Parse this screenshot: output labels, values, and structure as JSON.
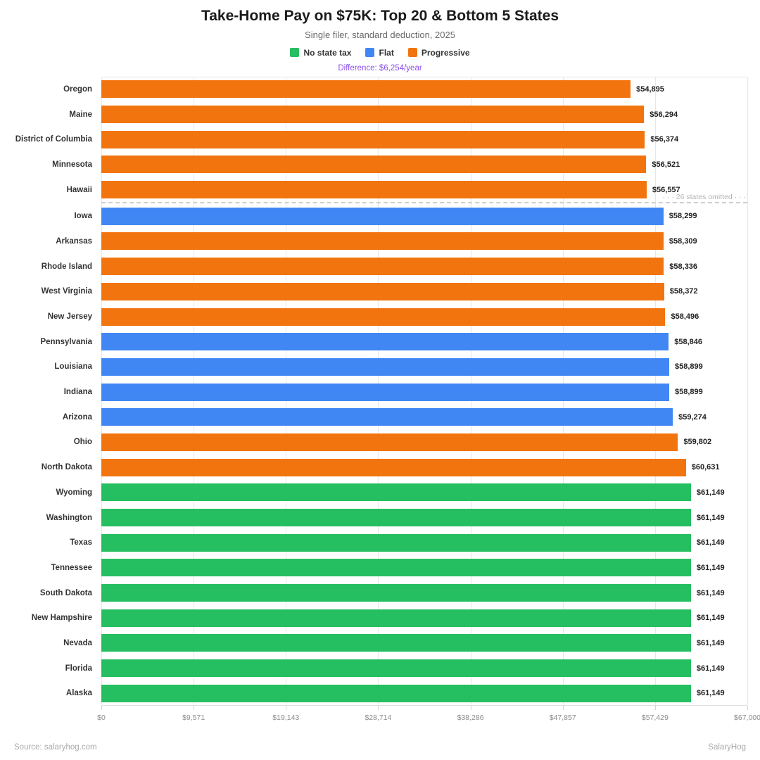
{
  "header": {
    "title": "Take-Home Pay on $75K: Top 20 & Bottom 5 States",
    "subtitle": "Single filer, standard deduction, 2025",
    "annotation": "Difference: $6,254/year",
    "annotation_color": "#8b4fea"
  },
  "legend": [
    {
      "label": "No state tax",
      "color": "#25be60"
    },
    {
      "label": "Flat",
      "color": "#4187f4"
    },
    {
      "label": "Progressive",
      "color": "#f2740e"
    }
  ],
  "chart_data": {
    "type": "bar",
    "orientation": "horizontal",
    "title": "Take-Home Pay on $75K: Top 20 & Bottom 5 States",
    "subtitle": "Single filer, standard deduction, 2025",
    "annotation": "Difference: $6,254/year",
    "xlim": [
      0,
      67000
    ],
    "x_tick_labels": [
      "$0",
      "$9,571",
      "$19,143",
      "$28,714",
      "$38,286",
      "$47,857",
      "$57,429",
      "$67,000"
    ],
    "x_tick_values": [
      0,
      9571,
      19143,
      28714,
      38286,
      47857,
      57429,
      67000
    ],
    "grid": true,
    "legend_position": "top",
    "colors": {
      "No state tax": "#25be60",
      "Flat": "#4187f4",
      "Progressive": "#f2740e"
    },
    "separator": {
      "after_index": 4,
      "note": "· · · 26 states omitted · · ·"
    },
    "bars": [
      {
        "state": "Oregon",
        "value": 54895,
        "label": "$54,895",
        "category": "Progressive"
      },
      {
        "state": "Maine",
        "value": 56294,
        "label": "$56,294",
        "category": "Progressive"
      },
      {
        "state": "District of Columbia",
        "value": 56374,
        "label": "$56,374",
        "category": "Progressive"
      },
      {
        "state": "Minnesota",
        "value": 56521,
        "label": "$56,521",
        "category": "Progressive"
      },
      {
        "state": "Hawaii",
        "value": 56557,
        "label": "$56,557",
        "category": "Progressive"
      },
      {
        "state": "Iowa",
        "value": 58299,
        "label": "$58,299",
        "category": "Flat"
      },
      {
        "state": "Arkansas",
        "value": 58309,
        "label": "$58,309",
        "category": "Progressive"
      },
      {
        "state": "Rhode Island",
        "value": 58336,
        "label": "$58,336",
        "category": "Progressive"
      },
      {
        "state": "West Virginia",
        "value": 58372,
        "label": "$58,372",
        "category": "Progressive"
      },
      {
        "state": "New Jersey",
        "value": 58496,
        "label": "$58,496",
        "category": "Progressive"
      },
      {
        "state": "Pennsylvania",
        "value": 58846,
        "label": "$58,846",
        "category": "Flat"
      },
      {
        "state": "Louisiana",
        "value": 58899,
        "label": "$58,899",
        "category": "Flat"
      },
      {
        "state": "Indiana",
        "value": 58899,
        "label": "$58,899",
        "category": "Flat"
      },
      {
        "state": "Arizona",
        "value": 59274,
        "label": "$59,274",
        "category": "Flat"
      },
      {
        "state": "Ohio",
        "value": 59802,
        "label": "$59,802",
        "category": "Progressive"
      },
      {
        "state": "North Dakota",
        "value": 60631,
        "label": "$60,631",
        "category": "Progressive"
      },
      {
        "state": "Wyoming",
        "value": 61149,
        "label": "$61,149",
        "category": "No state tax"
      },
      {
        "state": "Washington",
        "value": 61149,
        "label": "$61,149",
        "category": "No state tax"
      },
      {
        "state": "Texas",
        "value": 61149,
        "label": "$61,149",
        "category": "No state tax"
      },
      {
        "state": "Tennessee",
        "value": 61149,
        "label": "$61,149",
        "category": "No state tax"
      },
      {
        "state": "South Dakota",
        "value": 61149,
        "label": "$61,149",
        "category": "No state tax"
      },
      {
        "state": "New Hampshire",
        "value": 61149,
        "label": "$61,149",
        "category": "No state tax"
      },
      {
        "state": "Nevada",
        "value": 61149,
        "label": "$61,149",
        "category": "No state tax"
      },
      {
        "state": "Florida",
        "value": 61149,
        "label": "$61,149",
        "category": "No state tax"
      },
      {
        "state": "Alaska",
        "value": 61149,
        "label": "$61,149",
        "category": "No state tax"
      }
    ]
  },
  "footer": {
    "source": "Source: salaryhog.com",
    "brand": "SalaryHog"
  }
}
